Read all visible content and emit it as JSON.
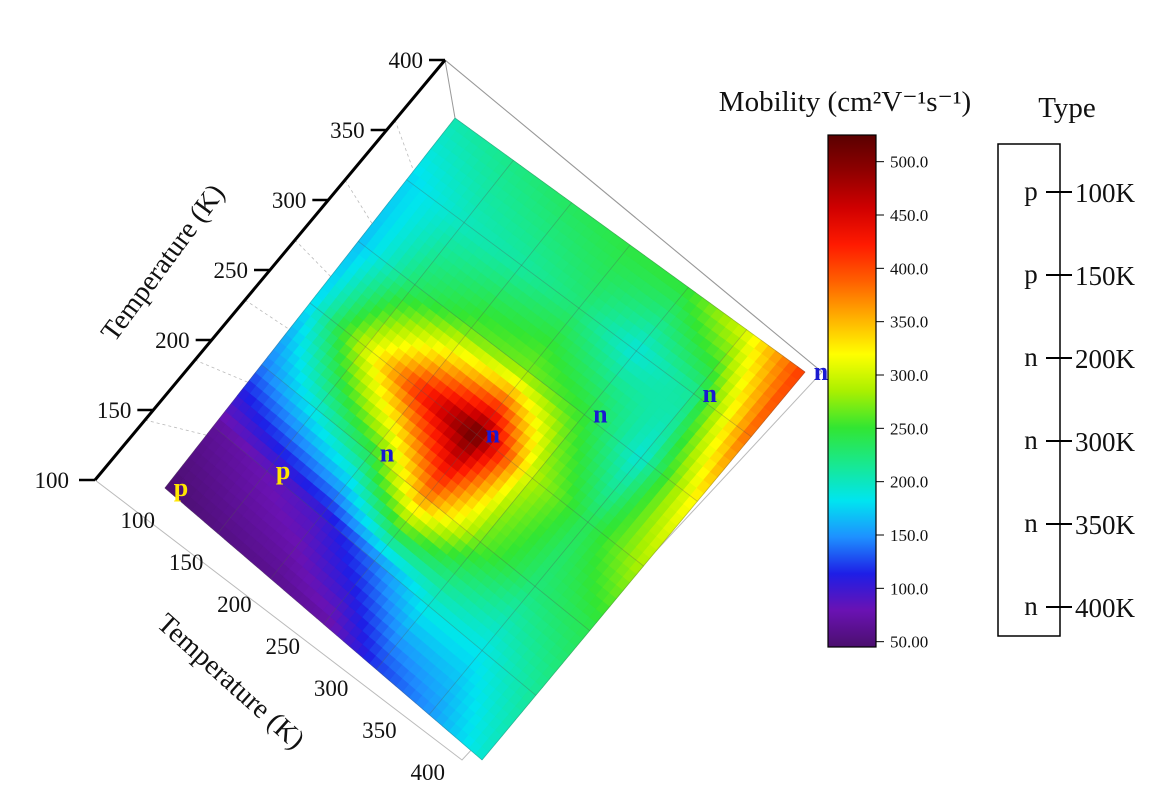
{
  "chart_data": {
    "type": "heatmap",
    "title": "",
    "x_axis": {
      "label": "Temperature (K)",
      "ticks": [
        100,
        150,
        200,
        250,
        300,
        350,
        400
      ],
      "range": [
        100,
        400
      ]
    },
    "y_axis": {
      "label": "Temperature (K)",
      "ticks": [
        100,
        150,
        200,
        250,
        300,
        350,
        400
      ],
      "range": [
        100,
        400
      ]
    },
    "grid": true,
    "colorbar": {
      "label": "Mobility (cm²V⁻¹s⁻¹)",
      "ticks": [
        "50.00",
        "100.0",
        "150.0",
        "200.0",
        "250.0",
        "300.0",
        "350.0",
        "400.0",
        "450.0",
        "500.0"
      ],
      "range": [
        45,
        525
      ],
      "colormap": [
        "#4b0f6e",
        "#6a12b3",
        "#1e1ee6",
        "#1e90ff",
        "#00e5f0",
        "#18e890",
        "#32e632",
        "#aaf000",
        "#ffff00",
        "#ffb000",
        "#ff6000",
        "#ff1a00",
        "#d00000",
        "#900000",
        "#5a0000"
      ]
    },
    "values_grid": [
      [
        45,
        65,
        140,
        175,
        165,
        175,
        205
      ],
      [
        55,
        80,
        190,
        300,
        230,
        200,
        220
      ],
      [
        60,
        95,
        240,
        420,
        260,
        210,
        235
      ],
      [
        70,
        140,
        370,
        520,
        270,
        225,
        245
      ],
      [
        120,
        190,
        265,
        290,
        250,
        190,
        250
      ],
      [
        150,
        185,
        225,
        235,
        190,
        215,
        305
      ],
      [
        195,
        215,
        240,
        290,
        330,
        390,
        410
      ]
    ],
    "type_labels": [
      {
        "text": "p",
        "x": 100,
        "y": 100,
        "color": "#ffe600"
      },
      {
        "text": "p",
        "x": 150,
        "y": 150,
        "color": "#ffe600"
      },
      {
        "text": "n",
        "x": 200,
        "y": 200,
        "color": "#1a1ad0"
      },
      {
        "text": "n",
        "x": 250,
        "y": 250,
        "color": "#1a1ad0"
      },
      {
        "text": "n",
        "x": 300,
        "y": 300,
        "color": "#1a1ad0"
      },
      {
        "text": "n",
        "x": 350,
        "y": 350,
        "color": "#1a1ad0"
      },
      {
        "text": "n",
        "x": 400,
        "y": 400,
        "color": "#1a1ad0"
      }
    ],
    "type_legend": {
      "title": "Type",
      "rows": [
        {
          "type": "p",
          "temp": "100K"
        },
        {
          "type": "p",
          "temp": "150K"
        },
        {
          "type": "n",
          "temp": "200K"
        },
        {
          "type": "n",
          "temp": "300K"
        },
        {
          "type": "n",
          "temp": "350K"
        },
        {
          "type": "n",
          "temp": "400K"
        }
      ]
    }
  }
}
